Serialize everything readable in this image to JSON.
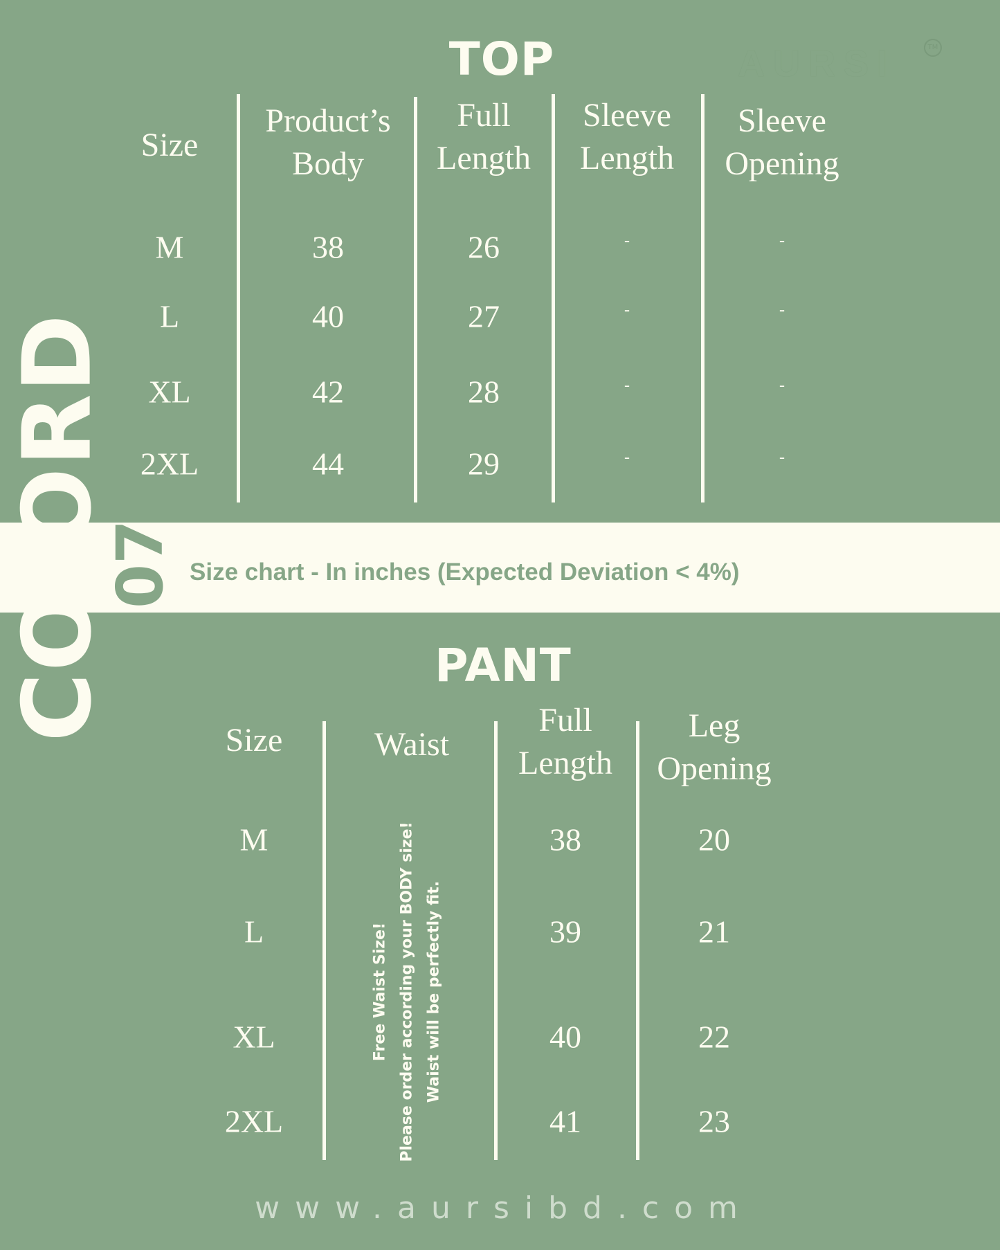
{
  "brand": {
    "logo": "AURSI",
    "trademark": "TM"
  },
  "side_label": {
    "text": "CO-ORD",
    "number": "07"
  },
  "top": {
    "title": "TOP",
    "headers": [
      [
        "Size"
      ],
      [
        "Product’s",
        "Body"
      ],
      [
        "Full",
        "Length"
      ],
      [
        "Sleeve",
        "Length"
      ],
      [
        "Sleeve",
        "Opening"
      ]
    ],
    "rows": [
      [
        "M",
        "38",
        "26",
        "-",
        "-"
      ],
      [
        "L",
        "40",
        "27",
        "-",
        "-"
      ],
      [
        "XL",
        "42",
        "28",
        "-",
        "-"
      ],
      [
        "2XL",
        "44",
        "29",
        "-",
        "-"
      ]
    ]
  },
  "band": {
    "text": "Size chart - In inches (Expected Deviation < 4%)"
  },
  "pant": {
    "title": "PANT",
    "headers": [
      [
        "Size"
      ],
      [
        "Waist"
      ],
      [
        "Full",
        "Length"
      ],
      [
        "Leg",
        "Opening"
      ]
    ],
    "rows": [
      [
        "M",
        "38",
        "20"
      ],
      [
        "L",
        "39",
        "21"
      ],
      [
        "XL",
        "40",
        "22"
      ],
      [
        "2XL",
        "41",
        "23"
      ]
    ],
    "waist_note": [
      "Free Waist Size!",
      "Please order according your BODY size!",
      "Waist will be perfectly fit."
    ]
  },
  "website": "www.aursibd.com",
  "colors": {
    "background": "#86a687",
    "cream": "#fdfcf0"
  }
}
